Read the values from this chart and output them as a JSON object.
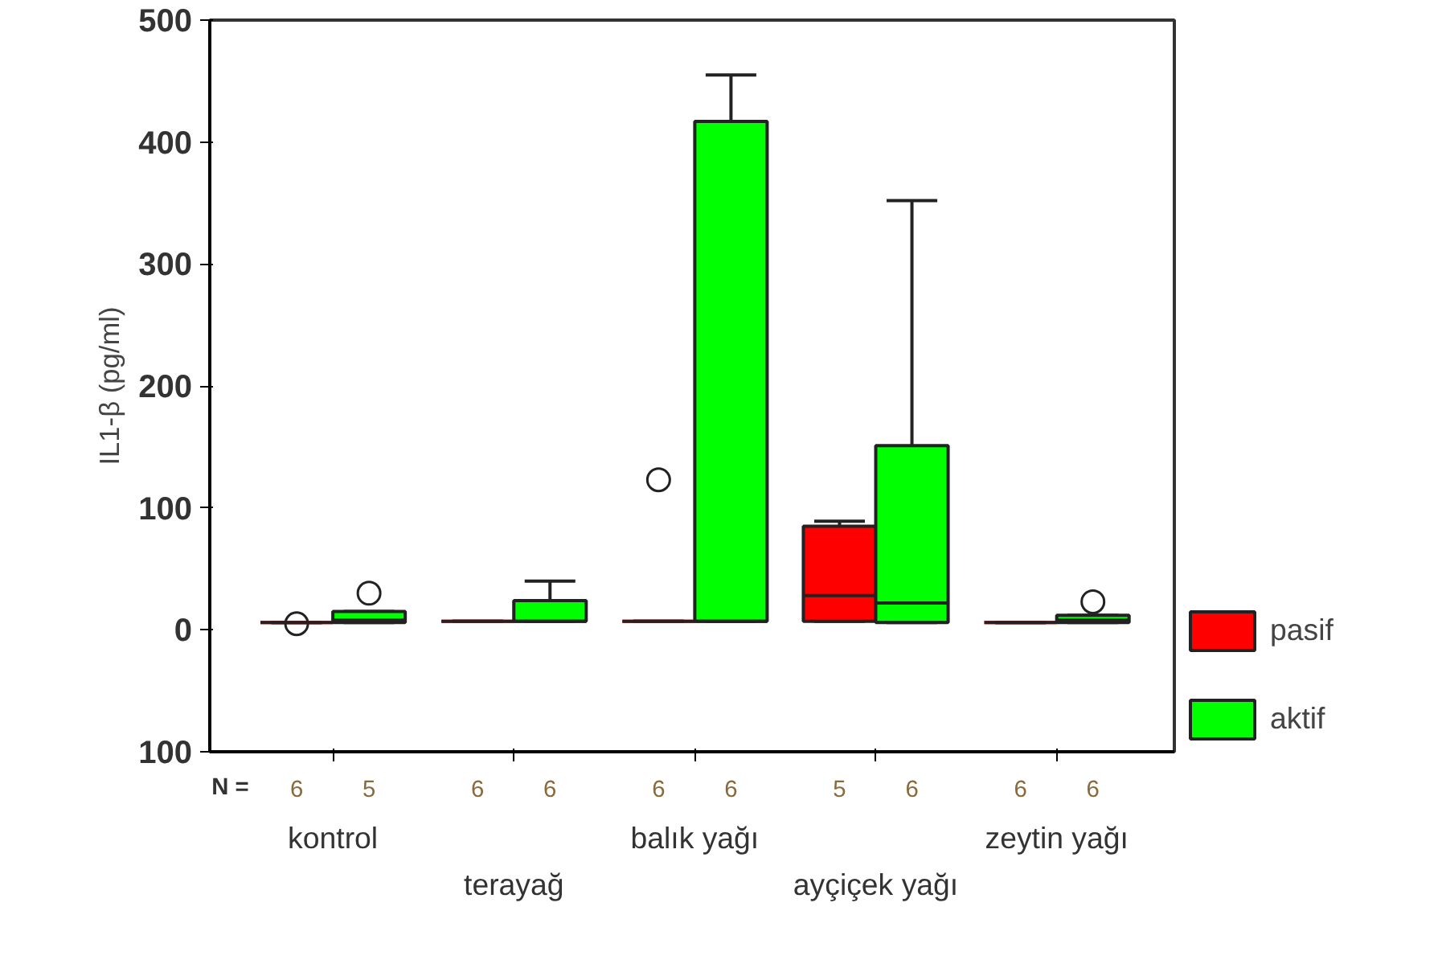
{
  "chart_data": {
    "type": "box",
    "ylabel": "IL1-β (pg/ml)",
    "categories": [
      "kontrol",
      "terayağ",
      "balık yağı",
      "ayçiçek yağı",
      "zeytin yağı"
    ],
    "series": [
      {
        "name": "pasif",
        "color": "#ff0000",
        "boxes": [
          {
            "low": 6,
            "q1": 6,
            "median": 6,
            "q3": 6,
            "high": 6,
            "outliers": [
              5
            ]
          },
          {
            "low": 7,
            "q1": 7,
            "median": 7,
            "q3": 7,
            "high": 7
          },
          {
            "low": 7,
            "q1": 7,
            "median": 7,
            "q3": 7,
            "high": 7,
            "outliers": [
              123
            ]
          },
          {
            "low": 7,
            "q1": 7,
            "median": 28,
            "q3": 85,
            "high": 89
          },
          {
            "low": 6,
            "q1": 6,
            "median": 6,
            "q3": 6,
            "high": 6
          }
        ]
      },
      {
        "name": "aktif",
        "color": "#00ff00",
        "boxes": [
          {
            "low": 6,
            "q1": 6,
            "median": 8,
            "q3": 15,
            "high": 15,
            "outliers": [
              30
            ]
          },
          {
            "low": 7,
            "q1": 7,
            "median": 7,
            "q3": 24,
            "high": 40
          },
          {
            "low": 7,
            "q1": 7,
            "median": 7,
            "q3": 417,
            "high": 455
          },
          {
            "low": 6,
            "q1": 6,
            "median": 22,
            "q3": 151,
            "high": 352
          },
          {
            "low": 6,
            "q1": 6,
            "median": 8,
            "q3": 12,
            "high": 12,
            "outliers": [
              23
            ]
          }
        ]
      }
    ],
    "ylim": [
      -100,
      500
    ],
    "yticks": [
      {
        "value": -100,
        "label": "100"
      },
      0,
      100,
      200,
      300,
      400,
      500
    ],
    "grid": false,
    "legend": "right",
    "annotations": [
      "N =",
      "6",
      "5",
      "6",
      "6",
      "6",
      "6",
      "5",
      "6",
      "6",
      "6"
    ]
  }
}
